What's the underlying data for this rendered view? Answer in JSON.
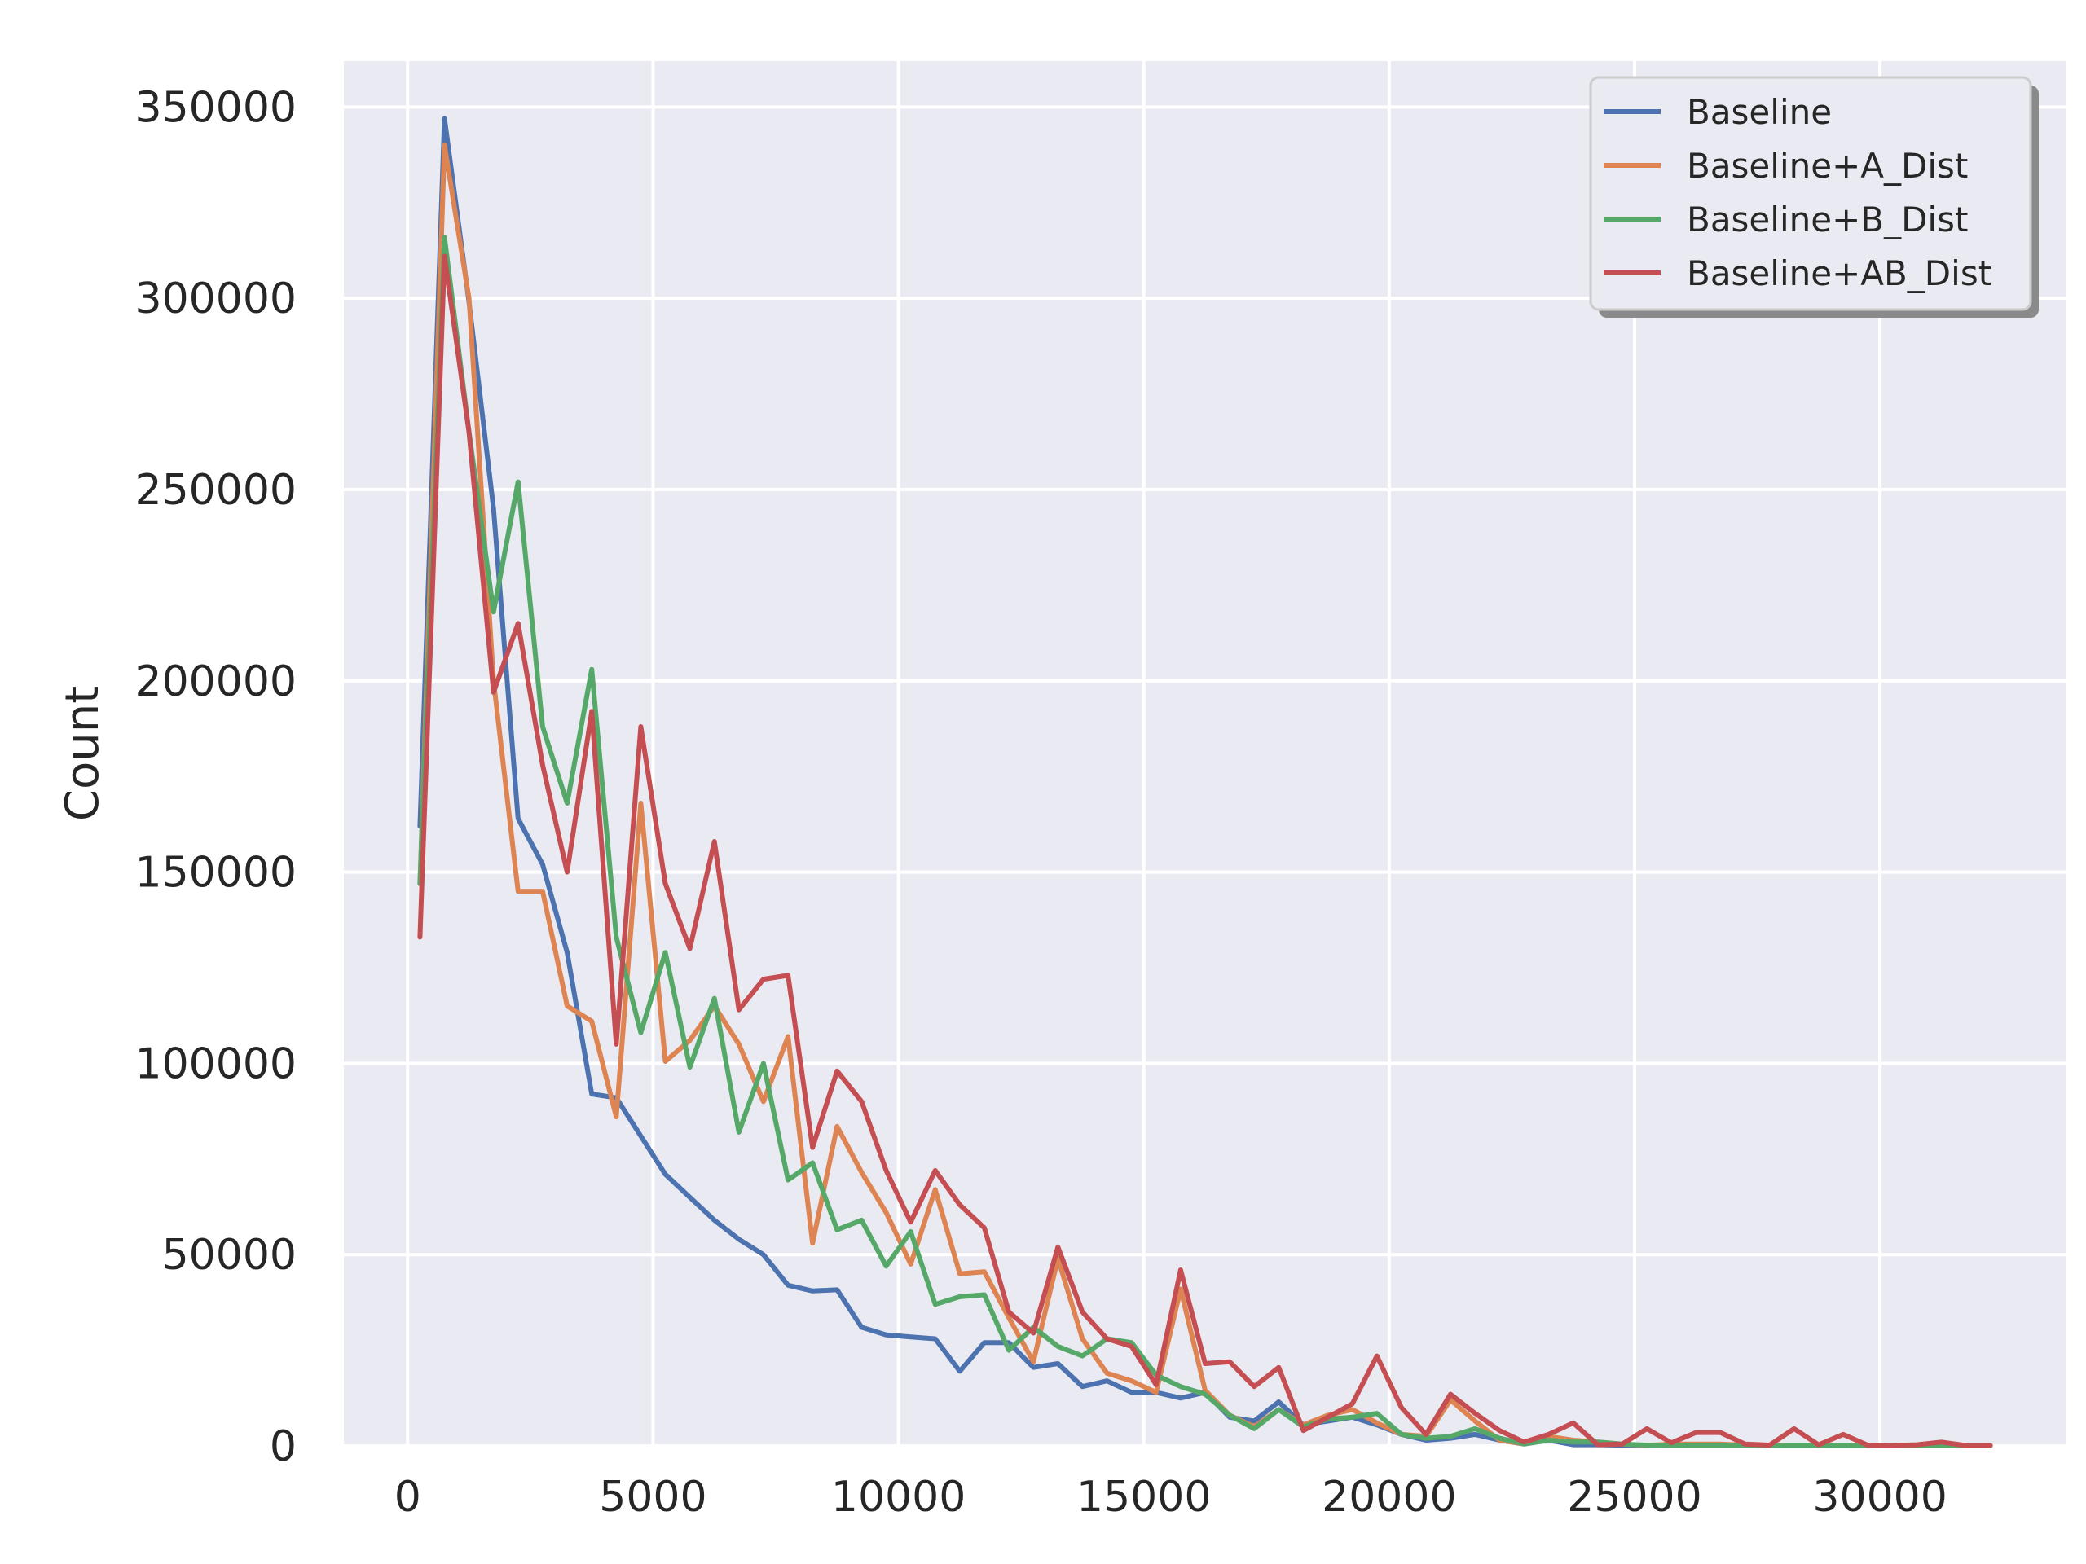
{
  "chart_data": {
    "type": "line",
    "title": "",
    "xlabel": "",
    "ylabel": "Count",
    "xlim": [
      -1300,
      33800
    ],
    "ylim": [
      0,
      362000
    ],
    "xticks": [
      0,
      5000,
      10000,
      15000,
      20000,
      25000,
      30000
    ],
    "yticks": [
      0,
      50000,
      100000,
      150000,
      200000,
      250000,
      300000,
      350000
    ],
    "grid": true,
    "legend_position": "top-right",
    "colors": {
      "background": "#eaeaf2",
      "grid": "#ffffff",
      "text": "#262626"
    },
    "x": [
      250,
      750,
      1250,
      1750,
      2250,
      2750,
      3250,
      3750,
      4250,
      4750,
      5250,
      5750,
      6250,
      6750,
      7250,
      7750,
      8250,
      8750,
      9250,
      9750,
      10250,
      10750,
      11250,
      11750,
      12250,
      12750,
      13250,
      13750,
      14250,
      14750,
      15250,
      15750,
      16250,
      16750,
      17250,
      17750,
      18250,
      18750,
      19250,
      19750,
      20250,
      20750,
      21250,
      21750,
      22250,
      22750,
      23250,
      23750,
      24250,
      24750,
      25250,
      25750,
      26250,
      26750,
      27250,
      27750,
      28250,
      28750,
      29250,
      29750,
      30250,
      30750,
      31250,
      31750,
      32250
    ],
    "series": [
      {
        "name": "Baseline",
        "color": "#4c72b0",
        "values": [
          162000,
          347000,
          299000,
          245000,
          164000,
          152000,
          129000,
          92000,
          91000,
          81000,
          71000,
          65000,
          59000,
          54000,
          50000,
          42000,
          40500,
          40800,
          31000,
          29000,
          28500,
          28000,
          19500,
          27000,
          27000,
          20500,
          21500,
          15500,
          17000,
          14000,
          14000,
          12500,
          14000,
          7500,
          6500,
          11500,
          5500,
          6500,
          7500,
          5500,
          3000,
          1500,
          2000,
          3000,
          1500,
          500,
          1500,
          300,
          300,
          200,
          100,
          100,
          100,
          100,
          100,
          50,
          50,
          50,
          50,
          50,
          50,
          50,
          50,
          50,
          50
        ]
      },
      {
        "name": "Baseline+A_Dist",
        "color": "#dd8452",
        "values": [
          147000,
          340000,
          300000,
          200000,
          145000,
          145000,
          115000,
          111000,
          86000,
          168000,
          100500,
          106000,
          115000,
          105000,
          90000,
          107000,
          53000,
          83500,
          71500,
          61000,
          47500,
          67000,
          45000,
          45500,
          33500,
          22000,
          49000,
          28000,
          19000,
          17000,
          14000,
          41000,
          14500,
          8000,
          5000,
          9500,
          5500,
          8000,
          9500,
          6000,
          3000,
          2500,
          12000,
          6500,
          1500,
          500,
          2500,
          1500,
          1000,
          500,
          100,
          500,
          500,
          500,
          200,
          100,
          100,
          100,
          100,
          100,
          100,
          50,
          50,
          50,
          50
        ]
      },
      {
        "name": "Baseline+B_Dist",
        "color": "#55a868",
        "values": [
          147000,
          316000,
          265000,
          218000,
          252000,
          188000,
          168000,
          203000,
          133000,
          108000,
          129000,
          99000,
          117000,
          82000,
          100000,
          69500,
          74000,
          56500,
          59000,
          47000,
          56000,
          37000,
          39000,
          39500,
          25000,
          31000,
          26000,
          23500,
          28000,
          27000,
          18500,
          15500,
          13500,
          8000,
          4500,
          9500,
          5000,
          7000,
          7500,
          8500,
          3000,
          2000,
          2500,
          4500,
          2000,
          500,
          1500,
          1000,
          1000,
          500,
          200,
          100,
          100,
          100,
          100,
          50,
          50,
          50,
          50,
          50,
          50,
          50,
          50,
          50,
          50
        ]
      },
      {
        "name": "Baseline+AB_Dist",
        "color": "#c44e52",
        "values": [
          133000,
          311000,
          265000,
          197000,
          215000,
          178000,
          150000,
          192000,
          105000,
          188000,
          147000,
          130000,
          158000,
          114000,
          122000,
          123000,
          78000,
          98000,
          90000,
          72000,
          58500,
          72000,
          63000,
          57000,
          35000,
          29500,
          52000,
          35000,
          28000,
          26000,
          16000,
          46000,
          21500,
          22000,
          15500,
          20500,
          4000,
          7500,
          11000,
          23500,
          10000,
          3000,
          13500,
          8500,
          4000,
          1000,
          3000,
          6000,
          300,
          500,
          4500,
          800,
          3500,
          3500,
          500,
          200,
          4500,
          300,
          3000,
          200,
          100,
          300,
          1000,
          100,
          100
        ]
      }
    ]
  }
}
